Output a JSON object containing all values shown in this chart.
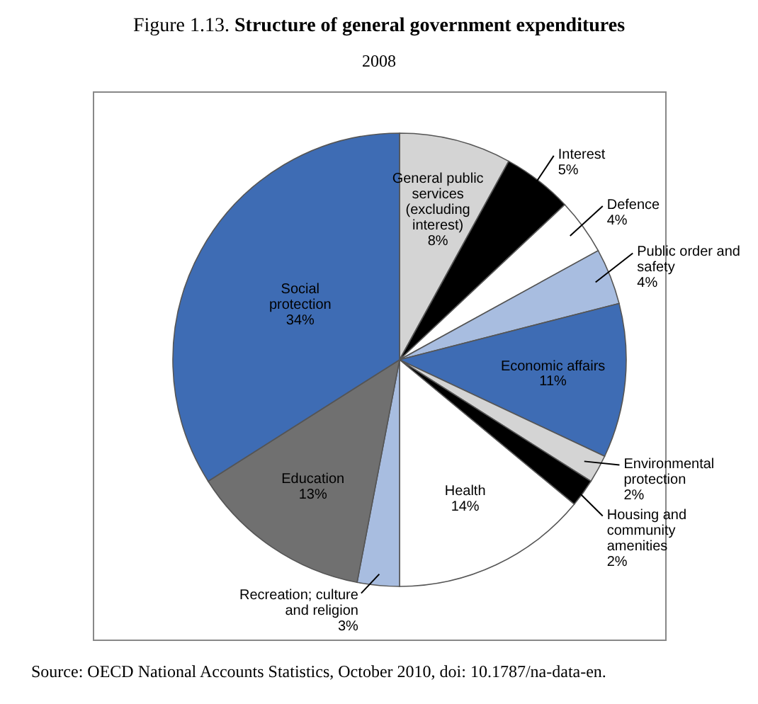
{
  "chart_data": {
    "type": "pie",
    "title": "Figure 1.13. Structure of general government expenditures",
    "subtitle": "2008",
    "categories": [
      "General public services (excluding interest)",
      "Interest",
      "Defence",
      "Public order and safety",
      "Economic affairs",
      "Environmental protection",
      "Housing and community amenities",
      "Health",
      "Recreation; culture and religion",
      "Education",
      "Social protection"
    ],
    "values": [
      8,
      5,
      4,
      4,
      11,
      2,
      2,
      14,
      3,
      13,
      34
    ],
    "value_labels": [
      "8%",
      "5%",
      "4%",
      "4%",
      "11%",
      "2%",
      "2%",
      "14%",
      "3%",
      "13%",
      "34%"
    ],
    "colors": [
      "#d4d4d4",
      "#000000",
      "#ffffff",
      "#a8bde0",
      "#3e6cb4",
      "#d4d4d4",
      "#000000",
      "#ffffff",
      "#a8bde0",
      "#707070",
      "#3e6cb4"
    ],
    "annotations": [
      "Source: OECD National Accounts Statistics, October 2010, doi: 10.1787/na-data-en."
    ]
  }
}
